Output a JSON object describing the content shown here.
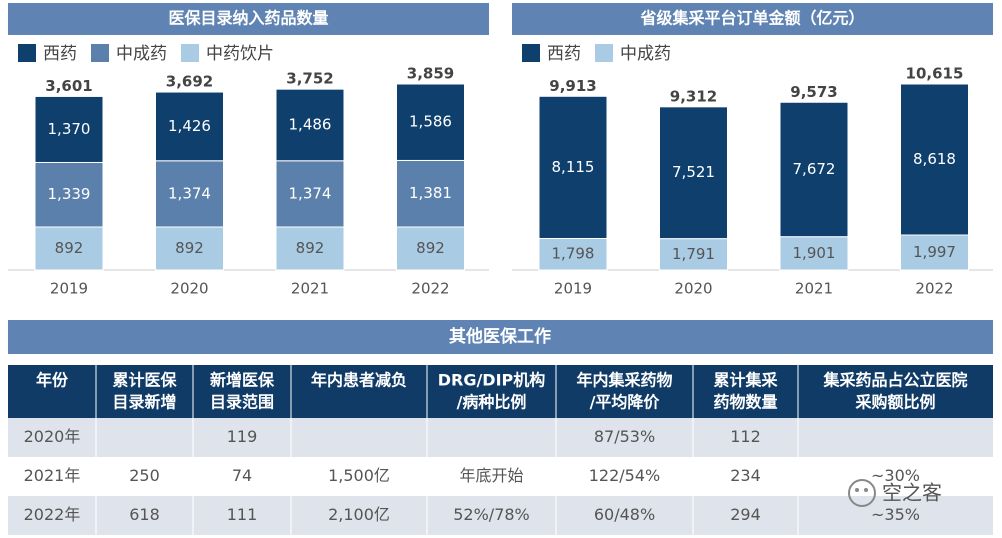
{
  "chart_data": [
    {
      "type": "stacked-bar",
      "title": "医保目录纳入药品数量",
      "categories": [
        "2019",
        "2020",
        "2021",
        "2022"
      ],
      "series": [
        {
          "name": "西药",
          "color": "#0f3f6d",
          "values": [
            1370,
            1426,
            1486,
            1586
          ],
          "value_labels": [
            "1,370",
            "1,426",
            "1,486",
            "1,586"
          ]
        },
        {
          "name": "中成药",
          "color": "#5b80ab",
          "values": [
            1339,
            1374,
            1374,
            1381
          ],
          "value_labels": [
            "1,339",
            "1,374",
            "1,374",
            "1,381"
          ]
        },
        {
          "name": "中药饮片",
          "color": "#a9cbe4",
          "values": [
            892,
            892,
            892,
            892
          ],
          "value_labels": [
            "892",
            "892",
            "892",
            "892"
          ]
        }
      ],
      "totals": [
        3601,
        3692,
        3752,
        3859
      ],
      "total_labels": [
        "3,601",
        "3,692",
        "3,752",
        "3,859"
      ]
    },
    {
      "type": "stacked-bar",
      "title": "省级集采平台订单金额（亿元）",
      "categories": [
        "2019",
        "2020",
        "2021",
        "2022"
      ],
      "series": [
        {
          "name": "西药",
          "color": "#0f3f6d",
          "values": [
            8115,
            7521,
            7672,
            8618
          ],
          "value_labels": [
            "8,115",
            "7,521",
            "7,672",
            "8,618"
          ]
        },
        {
          "name": "中成药",
          "color": "#a9cbe4",
          "values": [
            1798,
            1791,
            1901,
            1997
          ],
          "value_labels": [
            "1,798",
            "1,791",
            "1,901",
            "1,997"
          ]
        }
      ],
      "totals": [
        9913,
        9312,
        9573,
        10615
      ],
      "total_labels": [
        "9,913",
        "9,312",
        "9,573",
        "10,615"
      ]
    }
  ],
  "table": {
    "title": "其他医保工作",
    "header": [
      [
        "年份"
      ],
      [
        "累计医保",
        "目录新增"
      ],
      [
        "新增医保",
        "目录范围"
      ],
      [
        "年内患者减负"
      ],
      [
        "DRG/DIP机构",
        "/病种比例"
      ],
      [
        "年内集采药物",
        "/平均降价"
      ],
      [
        "累计集采",
        "药物数量"
      ],
      [
        "集采药品占公立医院",
        "采购额比例"
      ]
    ],
    "rows": [
      [
        "2020年",
        null,
        "119",
        null,
        null,
        "87/53%",
        "112",
        null
      ],
      [
        "2021年",
        "250",
        "74",
        "1,500亿",
        "年底开始",
        "122/54%",
        "234",
        "~30%"
      ],
      [
        "2022年",
        "618",
        "111",
        "2,100亿",
        "52%/78%",
        "60/48%",
        "294",
        "~35%"
      ]
    ]
  },
  "watermark": "空之客"
}
